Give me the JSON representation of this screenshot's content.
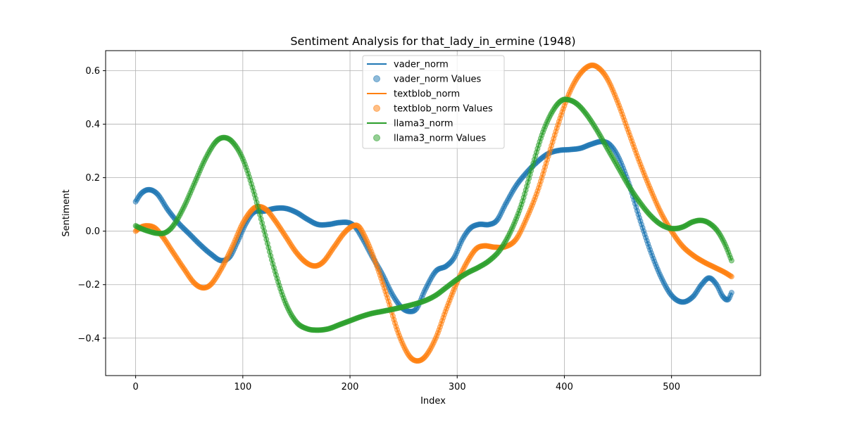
{
  "chart_data": {
    "type": "line",
    "title": "Sentiment Analysis for that_lady_in_ermine (1948)",
    "xlabel": "Index",
    "ylabel": "Sentiment",
    "xlim": [
      -28,
      583
    ],
    "ylim": [
      -0.54,
      0.675
    ],
    "xticks": [
      0,
      100,
      200,
      300,
      400,
      500
    ],
    "xtick_labels": [
      "0",
      "100",
      "200",
      "300",
      "400",
      "500"
    ],
    "yticks": [
      -0.4,
      -0.2,
      0.0,
      0.2,
      0.4,
      0.6
    ],
    "ytick_labels": [
      "−0.4",
      "−0.2",
      "0.0",
      "0.2",
      "0.4",
      "0.6"
    ],
    "grid": true,
    "legend_position": "upper center",
    "n_points": 557,
    "series": [
      {
        "name": "vader_norm",
        "color": "#1f77b4",
        "knots": [
          [
            0,
            0.11
          ],
          [
            5,
            0.14
          ],
          [
            12,
            0.155
          ],
          [
            20,
            0.14
          ],
          [
            30,
            0.08
          ],
          [
            40,
            0.03
          ],
          [
            50,
            -0.01
          ],
          [
            60,
            -0.05
          ],
          [
            70,
            -0.085
          ],
          [
            80,
            -0.11
          ],
          [
            88,
            -0.095
          ],
          [
            95,
            -0.04
          ],
          [
            103,
            0.03
          ],
          [
            110,
            0.07
          ],
          [
            120,
            0.075
          ],
          [
            130,
            0.085
          ],
          [
            140,
            0.085
          ],
          [
            150,
            0.07
          ],
          [
            160,
            0.045
          ],
          [
            170,
            0.025
          ],
          [
            180,
            0.025
          ],
          [
            190,
            0.032
          ],
          [
            200,
            0.03
          ],
          [
            205,
            0.015
          ],
          [
            212,
            -0.03
          ],
          [
            220,
            -0.09
          ],
          [
            230,
            -0.16
          ],
          [
            240,
            -0.24
          ],
          [
            248,
            -0.285
          ],
          [
            255,
            -0.3
          ],
          [
            262,
            -0.29
          ],
          [
            270,
            -0.22
          ],
          [
            280,
            -0.15
          ],
          [
            290,
            -0.13
          ],
          [
            297,
            -0.1
          ],
          [
            305,
            -0.03
          ],
          [
            312,
            0.01
          ],
          [
            320,
            0.025
          ],
          [
            330,
            0.025
          ],
          [
            337,
            0.04
          ],
          [
            345,
            0.1
          ],
          [
            355,
            0.17
          ],
          [
            365,
            0.22
          ],
          [
            375,
            0.26
          ],
          [
            385,
            0.29
          ],
          [
            395,
            0.302
          ],
          [
            405,
            0.305
          ],
          [
            415,
            0.31
          ],
          [
            425,
            0.325
          ],
          [
            435,
            0.335
          ],
          [
            442,
            0.325
          ],
          [
            450,
            0.28
          ],
          [
            460,
            0.18
          ],
          [
            470,
            0.05
          ],
          [
            480,
            -0.07
          ],
          [
            490,
            -0.17
          ],
          [
            500,
            -0.24
          ],
          [
            510,
            -0.265
          ],
          [
            520,
            -0.245
          ],
          [
            528,
            -0.2
          ],
          [
            535,
            -0.175
          ],
          [
            542,
            -0.2
          ],
          [
            548,
            -0.245
          ],
          [
            553,
            -0.255
          ],
          [
            556,
            -0.23
          ]
        ]
      },
      {
        "name": "textblob_norm",
        "color": "#ff7f0e",
        "knots": [
          [
            0,
            0.0
          ],
          [
            5,
            0.015
          ],
          [
            10,
            0.02
          ],
          [
            18,
            0.012
          ],
          [
            25,
            -0.02
          ],
          [
            35,
            -0.08
          ],
          [
            45,
            -0.14
          ],
          [
            55,
            -0.195
          ],
          [
            63,
            -0.212
          ],
          [
            70,
            -0.2
          ],
          [
            80,
            -0.14
          ],
          [
            90,
            -0.06
          ],
          [
            100,
            0.03
          ],
          [
            110,
            0.085
          ],
          [
            115,
            0.092
          ],
          [
            122,
            0.08
          ],
          [
            130,
            0.04
          ],
          [
            140,
            -0.02
          ],
          [
            150,
            -0.08
          ],
          [
            160,
            -0.12
          ],
          [
            168,
            -0.13
          ],
          [
            175,
            -0.115
          ],
          [
            185,
            -0.06
          ],
          [
            195,
            -0.005
          ],
          [
            203,
            0.02
          ],
          [
            208,
            0.018
          ],
          [
            215,
            -0.03
          ],
          [
            225,
            -0.13
          ],
          [
            235,
            -0.25
          ],
          [
            245,
            -0.38
          ],
          [
            255,
            -0.465
          ],
          [
            262,
            -0.485
          ],
          [
            270,
            -0.47
          ],
          [
            280,
            -0.4
          ],
          [
            290,
            -0.29
          ],
          [
            300,
            -0.19
          ],
          [
            310,
            -0.11
          ],
          [
            318,
            -0.065
          ],
          [
            325,
            -0.055
          ],
          [
            335,
            -0.06
          ],
          [
            345,
            -0.058
          ],
          [
            355,
            -0.03
          ],
          [
            365,
            0.05
          ],
          [
            375,
            0.15
          ],
          [
            385,
            0.28
          ],
          [
            395,
            0.41
          ],
          [
            405,
            0.52
          ],
          [
            415,
            0.59
          ],
          [
            425,
            0.62
          ],
          [
            432,
            0.61
          ],
          [
            440,
            0.57
          ],
          [
            450,
            0.48
          ],
          [
            460,
            0.37
          ],
          [
            470,
            0.26
          ],
          [
            480,
            0.16
          ],
          [
            490,
            0.07
          ],
          [
            500,
            0.0
          ],
          [
            510,
            -0.055
          ],
          [
            520,
            -0.09
          ],
          [
            530,
            -0.115
          ],
          [
            540,
            -0.135
          ],
          [
            550,
            -0.155
          ],
          [
            556,
            -0.17
          ]
        ]
      },
      {
        "name": "llama3_norm",
        "color": "#2ca02c",
        "knots": [
          [
            0,
            0.02
          ],
          [
            5,
            0.01
          ],
          [
            12,
            0.0
          ],
          [
            20,
            -0.008
          ],
          [
            28,
            -0.005
          ],
          [
            35,
            0.02
          ],
          [
            45,
            0.09
          ],
          [
            55,
            0.18
          ],
          [
            65,
            0.27
          ],
          [
            75,
            0.335
          ],
          [
            82,
            0.35
          ],
          [
            90,
            0.335
          ],
          [
            100,
            0.27
          ],
          [
            110,
            0.15
          ],
          [
            120,
            0.0
          ],
          [
            130,
            -0.15
          ],
          [
            140,
            -0.27
          ],
          [
            150,
            -0.34
          ],
          [
            160,
            -0.365
          ],
          [
            170,
            -0.37
          ],
          [
            180,
            -0.365
          ],
          [
            190,
            -0.35
          ],
          [
            200,
            -0.335
          ],
          [
            210,
            -0.32
          ],
          [
            220,
            -0.308
          ],
          [
            230,
            -0.3
          ],
          [
            240,
            -0.292
          ],
          [
            250,
            -0.283
          ],
          [
            260,
            -0.273
          ],
          [
            270,
            -0.26
          ],
          [
            280,
            -0.24
          ],
          [
            290,
            -0.21
          ],
          [
            300,
            -0.18
          ],
          [
            310,
            -0.155
          ],
          [
            320,
            -0.135
          ],
          [
            330,
            -0.11
          ],
          [
            340,
            -0.07
          ],
          [
            350,
            0.0
          ],
          [
            360,
            0.1
          ],
          [
            370,
            0.24
          ],
          [
            380,
            0.37
          ],
          [
            390,
            0.455
          ],
          [
            398,
            0.49
          ],
          [
            405,
            0.49
          ],
          [
            412,
            0.475
          ],
          [
            420,
            0.44
          ],
          [
            430,
            0.38
          ],
          [
            440,
            0.31
          ],
          [
            450,
            0.24
          ],
          [
            460,
            0.17
          ],
          [
            470,
            0.11
          ],
          [
            480,
            0.06
          ],
          [
            490,
            0.025
          ],
          [
            500,
            0.01
          ],
          [
            510,
            0.015
          ],
          [
            520,
            0.035
          ],
          [
            528,
            0.04
          ],
          [
            535,
            0.03
          ],
          [
            543,
            0.0
          ],
          [
            550,
            -0.05
          ],
          [
            556,
            -0.11
          ]
        ]
      }
    ]
  },
  "legend": {
    "entries": [
      {
        "label": "vader_norm",
        "kind": "line",
        "color": "#1f77b4"
      },
      {
        "label": "vader_norm Values",
        "kind": "marker",
        "color": "#1f77b4"
      },
      {
        "label": "textblob_norm",
        "kind": "line",
        "color": "#ff7f0e"
      },
      {
        "label": "textblob_norm Values",
        "kind": "marker",
        "color": "#ff7f0e"
      },
      {
        "label": "llama3_norm",
        "kind": "line",
        "color": "#2ca02c"
      },
      {
        "label": "llama3_norm Values",
        "kind": "marker",
        "color": "#2ca02c"
      }
    ]
  }
}
